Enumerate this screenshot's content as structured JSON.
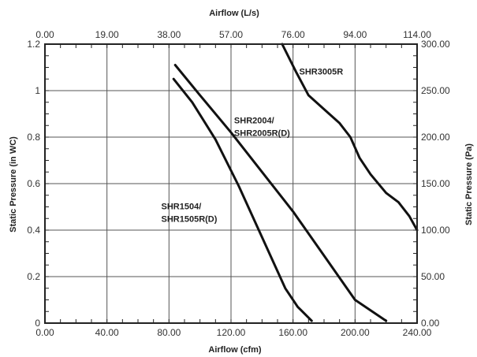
{
  "chart_data": {
    "type": "line",
    "xlabel_bottom": "Airflow (cfm)",
    "xlabel_top": "Airflow (L/s)",
    "ylabel_left": "Static Pressure (in WC)",
    "ylabel_right": "Static Pressure (Pa)",
    "xlim": [
      0,
      240
    ],
    "ylim": [
      0,
      1.2
    ],
    "x_ticks": [
      "0.00",
      "40.00",
      "80.00",
      "120.00",
      "160.00",
      "200.00",
      "240.00"
    ],
    "x_top_ticks": [
      "0.00",
      "19.00",
      "38.00",
      "57.00",
      "76.00",
      "94.00",
      "114.00"
    ],
    "y_ticks": [
      "0",
      "0.2",
      "0.4",
      "0.6",
      "0.8",
      "1",
      "1.2"
    ],
    "y_right_ticks": [
      "0.00",
      "50.00",
      "100.00",
      "150.00",
      "200.00",
      "250.00",
      "300.00"
    ],
    "grid": true,
    "series": [
      {
        "name": "SHR1504/\nSHR1505R(D)",
        "label_lines": [
          "SHR1504/",
          "SHR1505R(D)"
        ],
        "label_at": [
          75,
          0.49
        ],
        "x": [
          83,
          95,
          110,
          125,
          140,
          155,
          163,
          172
        ],
        "y": [
          1.05,
          0.95,
          0.79,
          0.59,
          0.37,
          0.15,
          0.07,
          0.01
        ]
      },
      {
        "name": "SHR2004/\nSHR2005R(D)",
        "label_lines": [
          "SHR2004/",
          "SHR2005R(D)"
        ],
        "label_at": [
          122,
          0.86
        ],
        "x": [
          84,
          100,
          120,
          140,
          160,
          180,
          200,
          220
        ],
        "y": [
          1.11,
          0.98,
          0.82,
          0.65,
          0.48,
          0.29,
          0.1,
          0.01
        ]
      },
      {
        "name": "SHR3005R",
        "label_lines": [
          "SHR3005R"
        ],
        "label_at": [
          164,
          1.07
        ],
        "x": [
          153,
          162,
          170,
          180,
          190,
          197,
          203,
          210,
          220,
          228,
          235,
          240
        ],
        "y": [
          1.2,
          1.08,
          0.98,
          0.92,
          0.86,
          0.8,
          0.71,
          0.64,
          0.56,
          0.52,
          0.46,
          0.4
        ]
      }
    ]
  }
}
